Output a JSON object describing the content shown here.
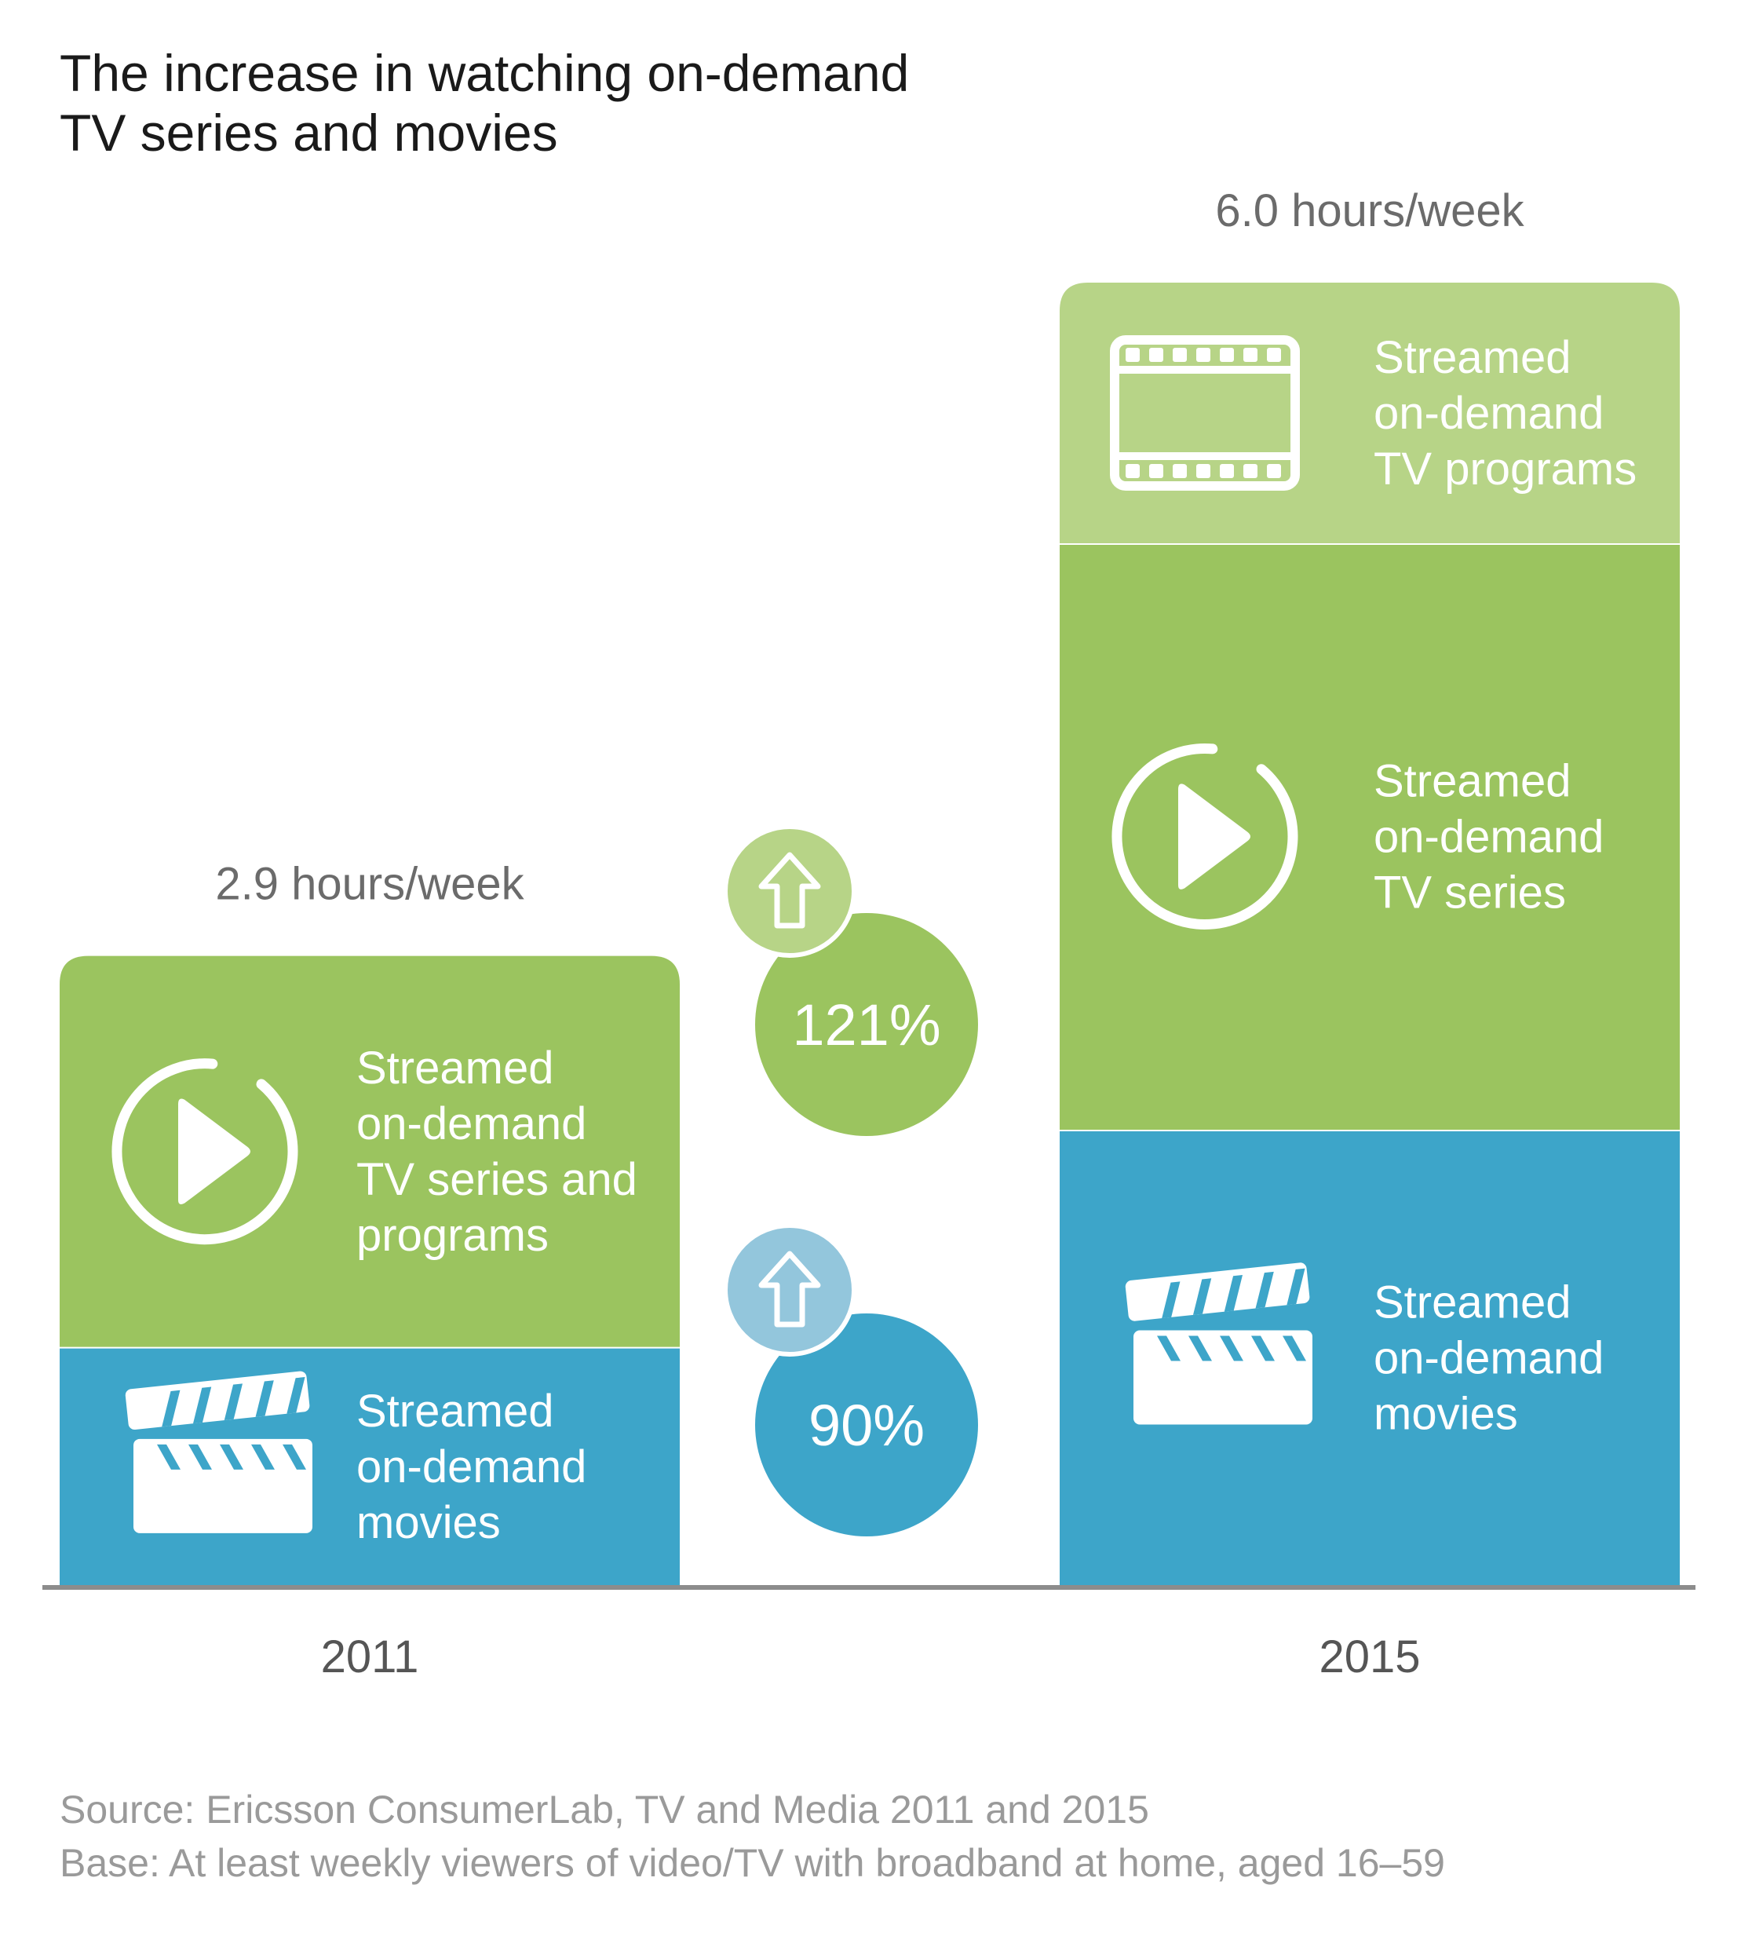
{
  "colors": {
    "tv_series": "#9bc45f",
    "tv_programs": "#b7d487",
    "movies": "#3da5c9",
    "arrow_green": "#b7d487",
    "arrow_blue": "#93c6dc",
    "axis": "#8c8c8c"
  },
  "chart_data": {
    "type": "bar",
    "stacked": true,
    "title": "The increase in watching on-demand TV series and movies",
    "title_lines": [
      "The increase in watching on-demand",
      "TV series and movies"
    ],
    "unit": "hours/week",
    "categories": [
      "2011",
      "2015"
    ],
    "totals": [
      2.9,
      6.0
    ],
    "total_labels": [
      "2.9 hours/week",
      "6.0 hours/week"
    ],
    "ylim": [
      0,
      6.0
    ],
    "grid": false,
    "segments": [
      {
        "year": "2011",
        "series": "movies",
        "value": 1.1,
        "label_lines": [
          "Streamed",
          "on-demand",
          "movies"
        ],
        "icon": "clapperboard-icon"
      },
      {
        "year": "2011",
        "series": "tv_series",
        "value": 1.8,
        "label_lines": [
          "Streamed",
          "on-demand",
          "TV series and",
          "programs"
        ],
        "icon": "play-icon"
      },
      {
        "year": "2015",
        "series": "movies",
        "value": 2.1,
        "label_lines": [
          "Streamed",
          "on-demand",
          "movies"
        ],
        "icon": "clapperboard-icon"
      },
      {
        "year": "2015",
        "series": "tv_series",
        "value": 2.7,
        "label_lines": [
          "Streamed",
          "on-demand",
          "TV series"
        ],
        "icon": "play-icon"
      },
      {
        "year": "2015",
        "series": "tv_programs",
        "value": 1.2,
        "label_lines": [
          "Streamed",
          "on-demand",
          "TV programs"
        ],
        "icon": "film-strip-icon"
      }
    ],
    "growth": [
      {
        "label": "121%",
        "series": "tv_series",
        "icon": "up-arrow-icon"
      },
      {
        "label": "90%",
        "series": "movies",
        "icon": "up-arrow-icon"
      }
    ]
  },
  "footer": {
    "source": "Source: Ericsson ConsumerLab, TV and Media 2011 and 2015",
    "base": "Base: At least weekly viewers of video/TV with broadband at home, aged 16–59"
  }
}
